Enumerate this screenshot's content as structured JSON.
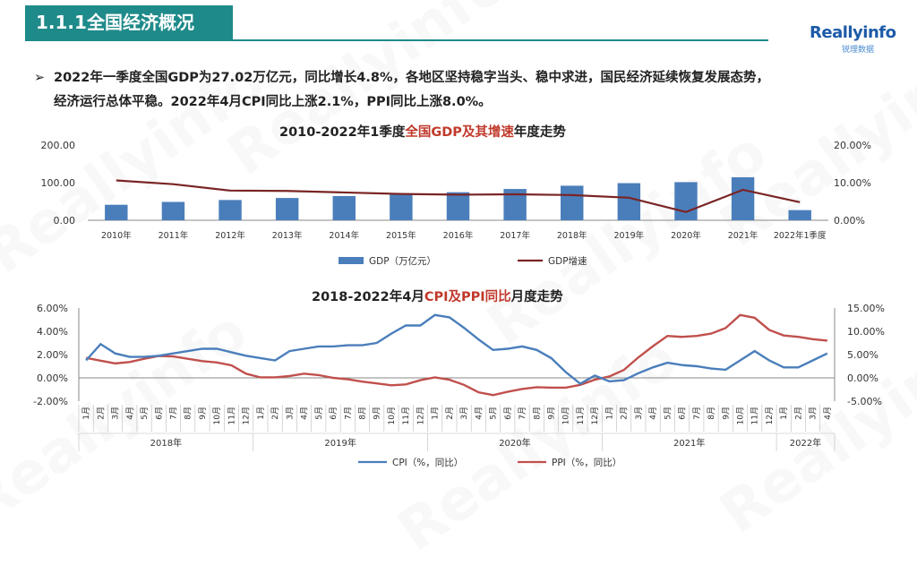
{
  "header": {
    "section_title": "1.1.1全国经济概况",
    "logo_text": "Reallyinfo",
    "logo_sub": "锐理数据"
  },
  "bullet": {
    "symbol": "➢",
    "line1": "2022年一季度全国GDP为27.02万亿元，同比增长4.8%，各地区坚持稳字当头、稳中求进，国民经济延续恢复发展态势，",
    "line2": "经济运行总体平稳。2022年4月CPI同比上涨2.1%，PPI同比上涨8.0%。"
  },
  "chart_data": [
    {
      "type": "bar",
      "title_parts": [
        "2010-2022年1季度",
        "全国GDP及其增速",
        "年度走势"
      ],
      "categories": [
        "2010年",
        "2011年",
        "2012年",
        "2013年",
        "2014年",
        "2015年",
        "2016年",
        "2017年",
        "2018年",
        "2019年",
        "2020年",
        "2021年",
        "2022年1季度"
      ],
      "series": [
        {
          "name": "GDP（万亿元）",
          "type": "bar",
          "axis": "left",
          "color": "#4a7ebb",
          "values": [
            41.2,
            48.8,
            53.9,
            59.3,
            64.4,
            68.9,
            74.6,
            83.2,
            91.9,
            98.7,
            101.4,
            114.4,
            27.02
          ]
        },
        {
          "name": "GDP增速",
          "type": "line",
          "axis": "right",
          "color": "#7a2424",
          "values": [
            10.6,
            9.6,
            7.9,
            7.8,
            7.4,
            7.0,
            6.8,
            6.9,
            6.7,
            6.0,
            2.2,
            8.1,
            4.8
          ]
        }
      ],
      "ylim": [
        0,
        200
      ],
      "y_ticks": [
        "0.00",
        "100.00",
        "200.00"
      ],
      "y2lim": [
        0,
        20
      ],
      "y2_ticks": [
        "0.00%",
        "10.00%",
        "20.00%"
      ],
      "legend": "bottom"
    },
    {
      "type": "line",
      "title_parts": [
        "2018-2022年4月",
        "CPI及PPI同比",
        "月度走势"
      ],
      "month_labels": [
        "1月",
        "2月",
        "3月",
        "4月",
        "5月",
        "6月",
        "7月",
        "8月",
        "9月",
        "10月",
        "11月",
        "12月"
      ],
      "years": [
        "2018年",
        "2019年",
        "2020年",
        "2021年",
        "2022年"
      ],
      "x_count": 52,
      "series": [
        {
          "name": "CPI（%，同比）",
          "axis": "left",
          "color": "#4a7ebb",
          "values": [
            1.5,
            2.9,
            2.1,
            1.8,
            1.8,
            1.9,
            2.1,
            2.3,
            2.5,
            2.5,
            2.2,
            1.9,
            1.7,
            1.5,
            2.3,
            2.5,
            2.7,
            2.7,
            2.8,
            2.8,
            3.0,
            3.8,
            4.5,
            4.5,
            5.4,
            5.2,
            4.3,
            3.3,
            2.4,
            2.5,
            2.7,
            2.4,
            1.7,
            0.5,
            -0.5,
            0.2,
            -0.3,
            -0.2,
            0.4,
            0.9,
            1.3,
            1.1,
            1.0,
            0.8,
            0.7,
            1.5,
            2.3,
            1.5,
            0.9,
            0.9,
            1.5,
            2.1
          ]
        },
        {
          "name": "PPI（%，同比）",
          "axis": "right",
          "color": "#c0504d",
          "values": [
            4.3,
            3.7,
            3.1,
            3.4,
            4.1,
            4.7,
            4.6,
            4.1,
            3.6,
            3.3,
            2.7,
            0.9,
            0.1,
            0.1,
            0.4,
            0.9,
            0.6,
            0.0,
            -0.3,
            -0.8,
            -1.2,
            -1.6,
            -1.4,
            -0.5,
            0.1,
            -0.4,
            -1.5,
            -3.1,
            -3.7,
            -3.0,
            -2.4,
            -2.0,
            -2.1,
            -2.1,
            -1.5,
            -0.4,
            0.3,
            1.7,
            4.4,
            6.8,
            9.0,
            8.8,
            9.0,
            9.5,
            10.7,
            13.5,
            12.9,
            10.3,
            9.1,
            8.8,
            8.3,
            8.0
          ]
        }
      ],
      "ylim": [
        -2,
        6
      ],
      "y_ticks": [
        "-2.00%",
        "0.00%",
        "2.00%",
        "4.00%",
        "6.00%"
      ],
      "y2lim": [
        -5,
        15
      ],
      "y2_ticks": [
        "-5.00%",
        "0.00%",
        "5.00%",
        "10.00%",
        "15.00%"
      ],
      "legend": "bottom"
    }
  ],
  "watermark": "Reallyinfo"
}
